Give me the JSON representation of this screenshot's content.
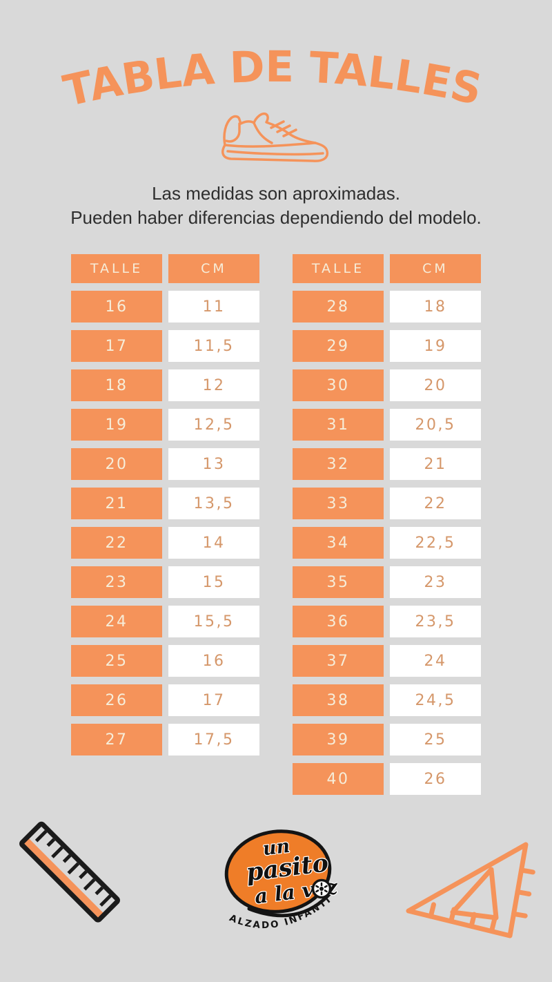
{
  "page": {
    "background_color": "#D9D9D9",
    "accent_color": "#F5935A"
  },
  "header": {
    "title": "TABLA DE TALLES",
    "icon": "sneaker-icon"
  },
  "disclaimer": {
    "line1": "Las medidas son aproximadas.",
    "line2": "Pueden haber diferencias dependiendo del modelo."
  },
  "tables": {
    "columns": {
      "talle": "TALLE",
      "cm": "CM"
    },
    "left": {
      "rows": [
        {
          "talle": "16",
          "cm": "11"
        },
        {
          "talle": "17",
          "cm": "11,5"
        },
        {
          "talle": "18",
          "cm": "12"
        },
        {
          "talle": "19",
          "cm": "12,5"
        },
        {
          "talle": "20",
          "cm": "13"
        },
        {
          "talle": "21",
          "cm": "13,5"
        },
        {
          "talle": "22",
          "cm": "14"
        },
        {
          "talle": "23",
          "cm": "15"
        },
        {
          "talle": "24",
          "cm": "15,5"
        },
        {
          "talle": "25",
          "cm": "16"
        },
        {
          "talle": "26",
          "cm": "17"
        },
        {
          "talle": "27",
          "cm": "17,5"
        }
      ]
    },
    "right": {
      "rows": [
        {
          "talle": "28",
          "cm": "18"
        },
        {
          "talle": "29",
          "cm": "19"
        },
        {
          "talle": "30",
          "cm": "20"
        },
        {
          "talle": "31",
          "cm": "20,5"
        },
        {
          "talle": "32",
          "cm": "21"
        },
        {
          "talle": "33",
          "cm": "22"
        },
        {
          "talle": "34",
          "cm": "22,5"
        },
        {
          "talle": "35",
          "cm": "23"
        },
        {
          "talle": "36",
          "cm": "23,5"
        },
        {
          "talle": "37",
          "cm": "24"
        },
        {
          "talle": "38",
          "cm": "24,5"
        },
        {
          "talle": "39",
          "cm": "25"
        },
        {
          "talle": "40",
          "cm": "26"
        }
      ]
    }
  },
  "footer": {
    "logo": {
      "word1": "un",
      "word2": "pasito",
      "word3": "a la vez",
      "tagline": "CALZADO INFANTIL",
      "oval_color": "#EF7D28"
    }
  },
  "chart_data": [
    {
      "type": "table",
      "title": "TABLA DE TALLES",
      "subtitle": "Las medidas son aproximadas. Pueden haber diferencias dependiendo del modelo.",
      "columns": [
        "TALLE",
        "CM"
      ],
      "rows": [
        [
          16,
          11
        ],
        [
          17,
          11.5
        ],
        [
          18,
          12
        ],
        [
          19,
          12.5
        ],
        [
          20,
          13
        ],
        [
          21,
          13.5
        ],
        [
          22,
          14
        ],
        [
          23,
          15
        ],
        [
          24,
          15.5
        ],
        [
          25,
          16
        ],
        [
          26,
          17
        ],
        [
          27,
          17.5
        ]
      ]
    },
    {
      "type": "table",
      "columns": [
        "TALLE",
        "CM"
      ],
      "rows": [
        [
          28,
          18
        ],
        [
          29,
          19
        ],
        [
          30,
          20
        ],
        [
          31,
          20.5
        ],
        [
          32,
          21
        ],
        [
          33,
          22
        ],
        [
          34,
          22.5
        ],
        [
          35,
          23
        ],
        [
          36,
          23.5
        ],
        [
          37,
          24
        ],
        [
          38,
          24.5
        ],
        [
          39,
          25
        ],
        [
          40,
          26
        ]
      ]
    }
  ]
}
